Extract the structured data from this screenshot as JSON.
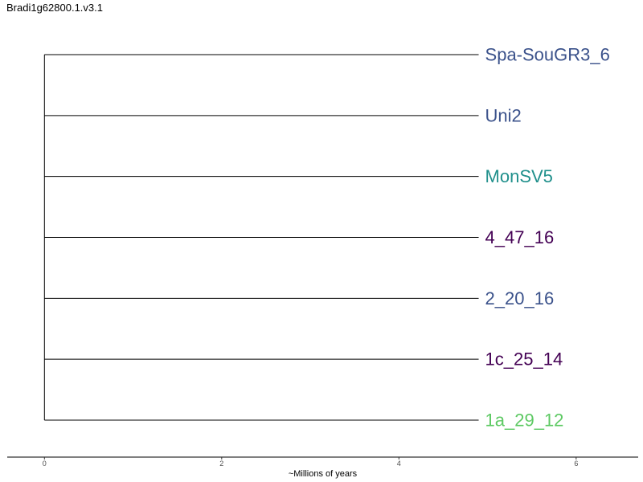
{
  "title": "Bradi1g62800.1.v3.1",
  "chart_data": {
    "type": "tree",
    "title": "Bradi1g62800.1.v3.1",
    "xlabel": "~Millions of years",
    "xlim": [
      -0.42,
      6.7
    ],
    "x_ticks": [
      0,
      2,
      4,
      6
    ],
    "x_tick_labels": [
      "0",
      "2",
      "4",
      "6"
    ],
    "root_x": 0,
    "tips": [
      {
        "label": "Spa-SouGR3_6",
        "branch_length": 4.9,
        "color": "#3b528b"
      },
      {
        "label": "Uni2",
        "branch_length": 4.9,
        "color": "#3b528b"
      },
      {
        "label": "MonSV5",
        "branch_length": 4.9,
        "color": "#21908c"
      },
      {
        "label": "4_47_16",
        "branch_length": 4.9,
        "color": "#440154"
      },
      {
        "label": "2_20_16",
        "branch_length": 4.9,
        "color": "#3b528b"
      },
      {
        "label": "1c_25_14",
        "branch_length": 4.9,
        "color": "#440154"
      },
      {
        "label": "1a_29_12",
        "branch_length": 4.9,
        "color": "#5dc963"
      }
    ],
    "grid": false
  }
}
